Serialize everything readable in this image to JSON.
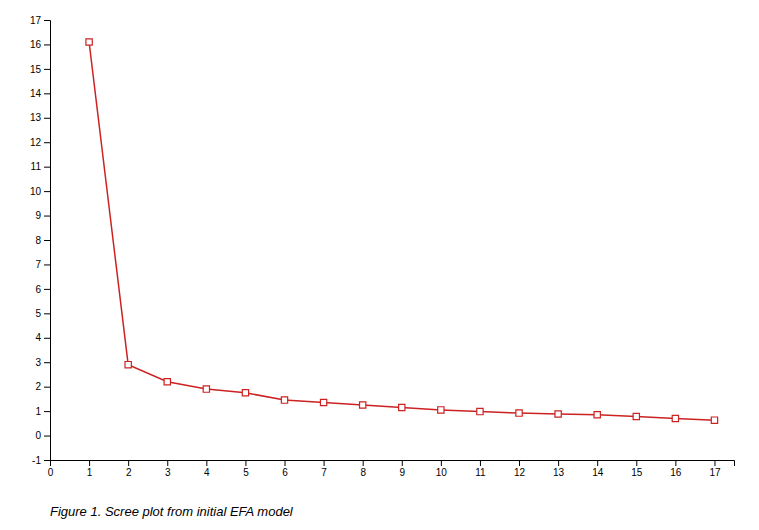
{
  "chart_data": {
    "type": "line",
    "title": "Figure 1. Scree plot from initial EFA model",
    "x": [
      1,
      2,
      3,
      4,
      5,
      6,
      7,
      8,
      9,
      10,
      11,
      12,
      13,
      14,
      15,
      16,
      17
    ],
    "values": [
      16.1,
      2.9,
      2.2,
      1.9,
      1.75,
      1.45,
      1.35,
      1.25,
      1.15,
      1.05,
      0.98,
      0.92,
      0.88,
      0.85,
      0.78,
      0.7,
      0.63
    ],
    "color": "#cc2222",
    "marker": "square",
    "xlim": [
      0,
      17.5
    ],
    "ylim": [
      -1,
      17
    ],
    "xticks": [
      0,
      1,
      2,
      3,
      4,
      5,
      6,
      7,
      8,
      9,
      10,
      11,
      12,
      13,
      14,
      15,
      16,
      17
    ],
    "yticks": [
      -1,
      0,
      1,
      2,
      3,
      4,
      5,
      6,
      7,
      8,
      9,
      10,
      11,
      12,
      13,
      14,
      15,
      16,
      17
    ],
    "grid": false
  }
}
